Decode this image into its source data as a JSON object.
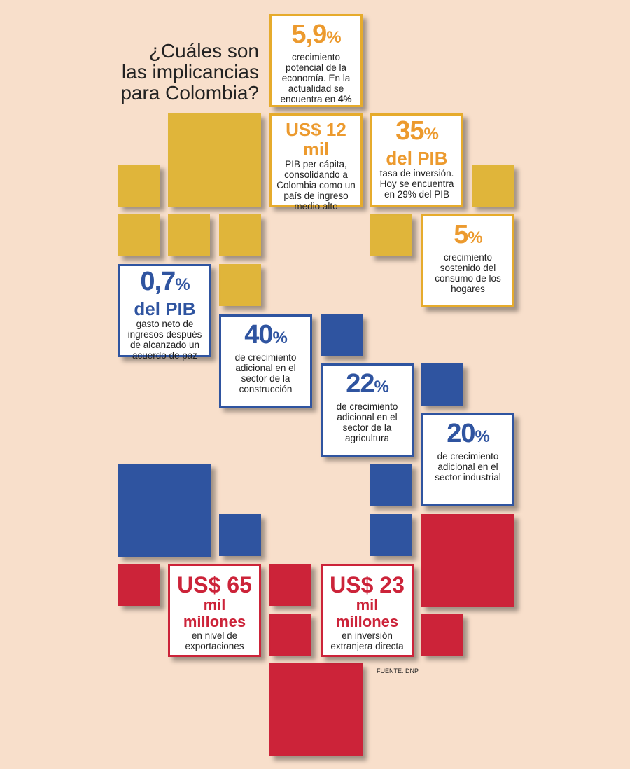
{
  "title": "¿Cuáles son las implicancias para Colombia?",
  "source": "FUENTE: DNP",
  "colors": {
    "yellow": "#e0b53a",
    "orange": "#ec9a2e",
    "blue": "#2f54a0",
    "red": "#cc2339",
    "background": "#f8dfcb"
  },
  "cards": {
    "growth": {
      "big": "5,9",
      "unit": "%",
      "desc": "crecimiento potencial de la economía. En la actualidad se encuentra en",
      "desc_bold": "4%"
    },
    "gdp_pc": {
      "prefix": "US$ 12 mil",
      "desc": "PIB per cápita, consolidando a Colombia como un país de ingreso medio alto"
    },
    "investment": {
      "big": "35",
      "unit": "%",
      "sub": "del PIB",
      "desc": "tasa de inversión. Hoy se encuentra en 29% del PIB"
    },
    "consumption": {
      "big": "5",
      "unit": "%",
      "desc": "crecimiento sostenido del consumo de los hogares"
    },
    "peace": {
      "big": "0,7",
      "unit": "%",
      "sub": "del PIB",
      "desc": "gasto neto de ingresos después de alcanzado un acuerdo de paz"
    },
    "construction": {
      "big": "40",
      "unit": "%",
      "desc": "de crecimiento adicional en el sector de la construcción"
    },
    "agriculture": {
      "big": "22",
      "unit": "%",
      "desc": "de crecimiento adicional en el sector de la agricultura"
    },
    "industry": {
      "big": "20",
      "unit": "%",
      "desc": "de crecimiento adicional en el sector industrial"
    },
    "exports": {
      "big": "US$ 65",
      "sub": "mil millones",
      "desc": "en nivel de exportaciones"
    },
    "fdi": {
      "big": "US$ 23",
      "sub": "mil millones",
      "desc": "en inversión extranjera directa"
    }
  }
}
